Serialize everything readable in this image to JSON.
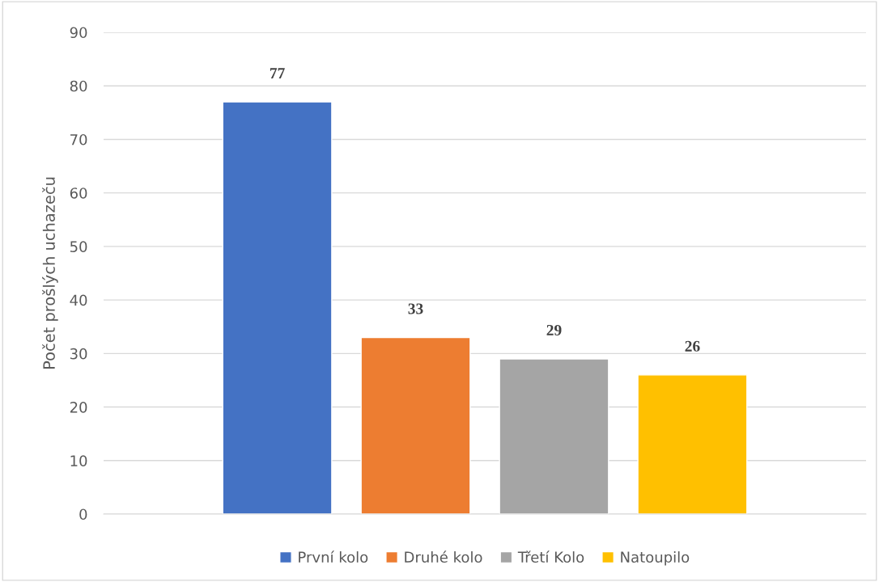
{
  "chart_data": {
    "type": "bar",
    "ylabel": "Počet prošlých uchazeču",
    "categories": [
      null
    ],
    "series": [
      {
        "name": "První kolo",
        "color": "#4472c4",
        "values": [
          77
        ]
      },
      {
        "name": "Druhé kolo",
        "color": "#ed7d31",
        "values": [
          33
        ]
      },
      {
        "name": "Třetí Kolo",
        "color": "#a5a5a5",
        "values": [
          29
        ]
      },
      {
        "name": "Natoupilo",
        "color": "#ffc000",
        "values": [
          26
        ]
      }
    ],
    "ylim": [
      0,
      90
    ],
    "yticks": [
      0,
      10,
      20,
      30,
      40,
      50,
      60,
      70,
      80,
      90
    ],
    "grid": "y",
    "legend": "bottom",
    "data_labels": true
  }
}
